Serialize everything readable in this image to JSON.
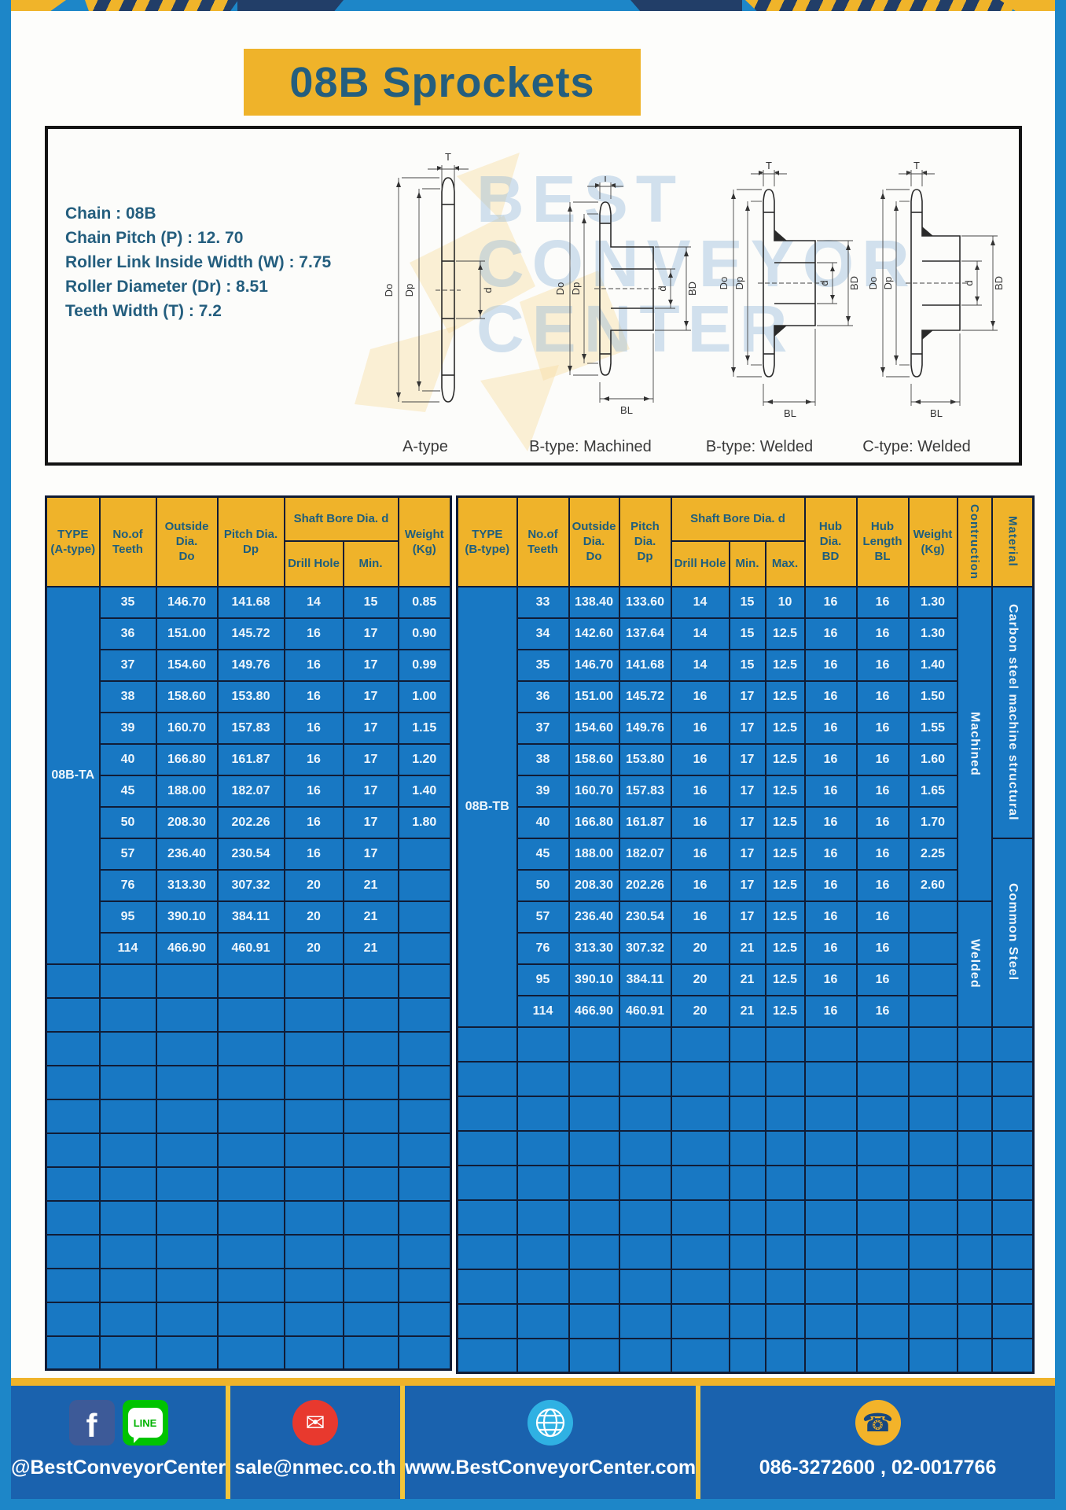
{
  "title": "08B Sprockets",
  "specs": [
    "Chain  : 08B",
    "Chain Pitch (P)  :  12. 70",
    "Roller Link Inside Width (W)  :  7.75",
    "Roller Diameter (Dr)  : 8.51",
    "Teeth Width (T)  :  7.2"
  ],
  "diagram": {
    "captions": [
      "A-type",
      "B-type: Machined",
      "B-type: Welded",
      "C-type: Welded"
    ],
    "dims": {
      "t": "T",
      "do": "Do",
      "dp": "Dp",
      "d": "d",
      "bd": "BD",
      "bl": "BL"
    },
    "watermark": [
      "BEST",
      "CONVEYOR",
      "CENTER"
    ]
  },
  "table_a": {
    "name": "08B-TA",
    "col_headers": {
      "type": [
        "TYPE",
        "(A-type)"
      ],
      "teeth": [
        "No.of",
        "Teeth"
      ],
      "outside": [
        "Outside",
        "Dia.",
        "Do"
      ],
      "pitch": [
        "Pitch Dia.",
        "Dp"
      ],
      "bore_group": "Shaft Bore Dia. d",
      "bore_sub": [
        "Drill Hole",
        "Min."
      ],
      "weight": [
        "Weight",
        "(Kg)"
      ]
    },
    "rows": [
      [
        "35",
        "146.70",
        "141.68",
        "14",
        "15",
        "0.85"
      ],
      [
        "36",
        "151.00",
        "145.72",
        "16",
        "17",
        "0.90"
      ],
      [
        "37",
        "154.60",
        "149.76",
        "16",
        "17",
        "0.99"
      ],
      [
        "38",
        "158.60",
        "153.80",
        "16",
        "17",
        "1.00"
      ],
      [
        "39",
        "160.70",
        "157.83",
        "16",
        "17",
        "1.15"
      ],
      [
        "40",
        "166.80",
        "161.87",
        "16",
        "17",
        "1.20"
      ],
      [
        "45",
        "188.00",
        "182.07",
        "16",
        "17",
        "1.40"
      ],
      [
        "50",
        "208.30",
        "202.26",
        "16",
        "17",
        "1.80"
      ],
      [
        "57",
        "236.40",
        "230.54",
        "16",
        "17",
        ""
      ],
      [
        "76",
        "313.30",
        "307.32",
        "20",
        "21",
        ""
      ],
      [
        "95",
        "390.10",
        "384.11",
        "20",
        "21",
        ""
      ],
      [
        "114",
        "466.90",
        "460.91",
        "20",
        "21",
        ""
      ]
    ],
    "empty_row_count": 12
  },
  "table_b": {
    "name": "08B-TB",
    "col_headers": {
      "type": [
        "TYPE",
        "(B-type)"
      ],
      "teeth": [
        "No.of",
        "Teeth"
      ],
      "outside": [
        "Outside",
        "Dia.",
        "Do"
      ],
      "pitch": [
        "Pitch Dia.",
        "Dp"
      ],
      "bore_group": "Shaft Bore Dia. d",
      "bore_sub": [
        "Drill Hole",
        "Min.",
        "Max."
      ],
      "hub_dia": [
        "Hub Dia.",
        "BD"
      ],
      "hub_len": [
        "Hub",
        "Length",
        "BL"
      ],
      "weight": [
        "Weight",
        "(Kg)"
      ],
      "construction": "Contruction",
      "material": "Material"
    },
    "rows": [
      [
        "33",
        "138.40",
        "133.60",
        "14",
        "15",
        "10",
        "16",
        "16",
        "1.30"
      ],
      [
        "34",
        "142.60",
        "137.64",
        "14",
        "15",
        "12.5",
        "16",
        "16",
        "1.30"
      ],
      [
        "35",
        "146.70",
        "141.68",
        "14",
        "15",
        "12.5",
        "16",
        "16",
        "1.40"
      ],
      [
        "36",
        "151.00",
        "145.72",
        "16",
        "17",
        "12.5",
        "16",
        "16",
        "1.50"
      ],
      [
        "37",
        "154.60",
        "149.76",
        "16",
        "17",
        "12.5",
        "16",
        "16",
        "1.55"
      ],
      [
        "38",
        "158.60",
        "153.80",
        "16",
        "17",
        "12.5",
        "16",
        "16",
        "1.60"
      ],
      [
        "39",
        "160.70",
        "157.83",
        "16",
        "17",
        "12.5",
        "16",
        "16",
        "1.65"
      ],
      [
        "40",
        "166.80",
        "161.87",
        "16",
        "17",
        "12.5",
        "16",
        "16",
        "1.70"
      ],
      [
        "45",
        "188.00",
        "182.07",
        "16",
        "17",
        "12.5",
        "16",
        "16",
        "2.25"
      ],
      [
        "50",
        "208.30",
        "202.26",
        "16",
        "17",
        "12.5",
        "16",
        "16",
        "2.60"
      ],
      [
        "57",
        "236.40",
        "230.54",
        "16",
        "17",
        "12.5",
        "16",
        "16",
        ""
      ],
      [
        "76",
        "313.30",
        "307.32",
        "20",
        "21",
        "12.5",
        "16",
        "16",
        ""
      ],
      [
        "95",
        "390.10",
        "384.11",
        "20",
        "21",
        "12.5",
        "16",
        "16",
        ""
      ],
      [
        "114",
        "466.90",
        "460.91",
        "20",
        "21",
        "12.5",
        "16",
        "16",
        ""
      ]
    ],
    "construction_spans": [
      {
        "label": "Machined",
        "rows": 10
      },
      {
        "label": "Welded",
        "rows": 4
      }
    ],
    "material_spans": [
      {
        "label": "Carbon steel  machine structural",
        "rows": 8
      },
      {
        "label": "Common  Steel",
        "rows": 6
      }
    ],
    "empty_row_count": 10
  },
  "footer": {
    "sections": [
      {
        "icons": [
          "facebook-icon",
          "line-icon"
        ],
        "label": "@BestConveyorCenter"
      },
      {
        "icons": [
          "mail-icon"
        ],
        "label": "sale@nmec.co.th"
      },
      {
        "icons": [
          "globe-icon"
        ],
        "label": "www.BestConveyorCenter.com"
      },
      {
        "icons": [
          "phone-icon"
        ],
        "label": "086-3272600 , 02-0017766"
      }
    ],
    "icon_glyphs": {
      "facebook": "f",
      "line": "LINE",
      "mail": "✉",
      "phone": "☎"
    }
  }
}
